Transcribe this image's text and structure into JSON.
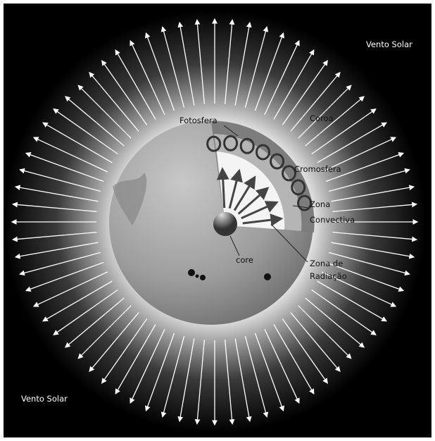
{
  "labels": [
    [
      "Vento Solar"
    ],
    [
      "Coroa"
    ],
    [
      "Fotosfera"
    ],
    [
      "Cromosfera"
    ],
    [
      "Zona",
      "Convectiva"
    ],
    [
      "core"
    ],
    [
      "Zona de",
      "Radiação"
    ],
    [
      "Vento Solar"
    ]
  ]
}
